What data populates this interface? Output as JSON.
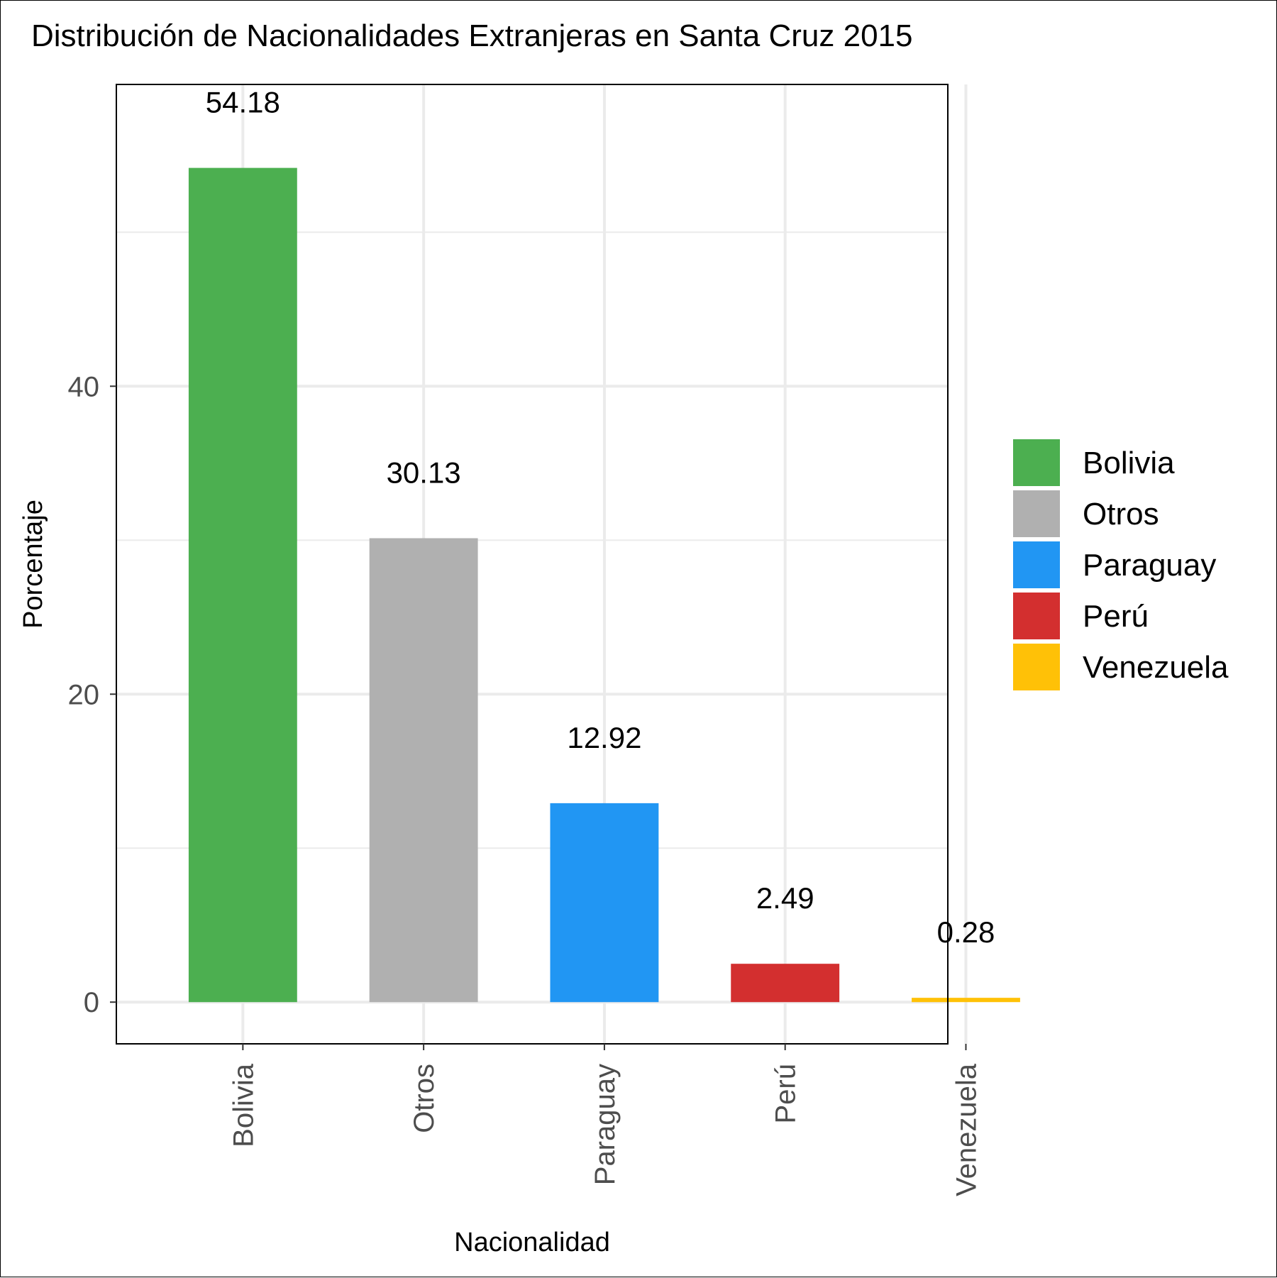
{
  "chart_data": {
    "type": "bar",
    "title": "Distribución de Nacionalidades Extranjeras en Santa Cruz 2015",
    "xlabel": "Nacionalidad",
    "ylabel": "Porcentaje",
    "categories": [
      "Bolivia",
      "Otros",
      "Paraguay",
      "Perú",
      "Venezuela"
    ],
    "values": [
      54.18,
      30.13,
      12.92,
      2.49,
      0.28
    ],
    "value_labels": [
      "54.18",
      "30.13",
      "12.92",
      "2.49",
      "0.28"
    ],
    "colors": [
      "#4caf50",
      "#b0b0b0",
      "#2196f3",
      "#d32f2f",
      "#ffc107"
    ],
    "ylim": [
      -2.709,
      59.6
    ],
    "y_ticks": [
      0,
      20,
      40
    ],
    "y_tick_labels": [
      "0",
      "20",
      "40"
    ],
    "grid": true,
    "x_tick_rotation": "vertical",
    "legend": {
      "placement": "right",
      "entries": [
        "Bolivia",
        "Otros",
        "Paraguay",
        "Perú",
        "Venezuela"
      ]
    }
  }
}
